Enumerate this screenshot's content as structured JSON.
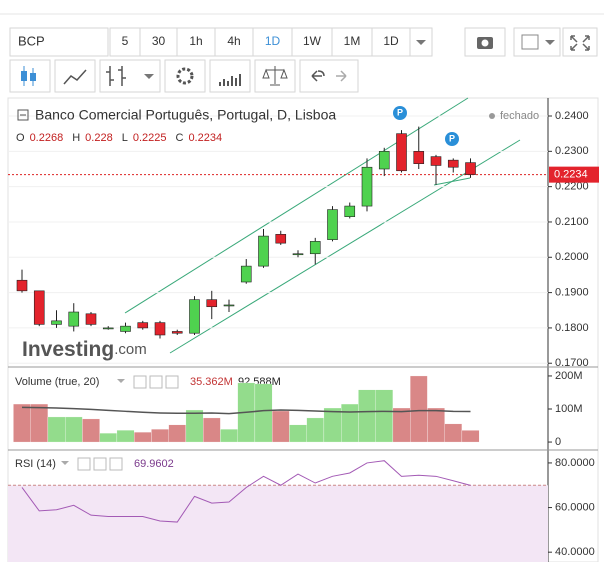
{
  "toolbar": {
    "symbol": "BCP",
    "intervals": [
      "5",
      "30",
      "1h",
      "4h",
      "1D",
      "1W",
      "1M",
      "1D"
    ]
  },
  "chart_data": [
    {
      "type": "candlestick",
      "title": "Banco Comercial Português, Portugal, D, Lisboa",
      "status": "fechado",
      "ohlc_legend": [
        {
          "key": "O",
          "value": 0.2268
        },
        {
          "key": "H",
          "value": 0.228
        },
        {
          "key": "L",
          "value": 0.2225
        },
        {
          "key": "C",
          "value": 0.2234
        }
      ],
      "watermark": [
        "Investing",
        ".com"
      ],
      "events": [
        "P",
        "P"
      ],
      "last_price": 0.2234,
      "open": [
        0.1935,
        0.1905,
        0.181,
        0.1805,
        0.184,
        0.18,
        0.179,
        0.1815,
        0.1815,
        0.179,
        0.1785,
        0.188,
        0.1865,
        0.193,
        0.1975,
        0.2065,
        0.201,
        0.201,
        0.205,
        0.2115,
        0.2145,
        0.225,
        0.235,
        0.23,
        0.2285,
        0.2275,
        0.2268
      ],
      "high": [
        0.1965,
        0.1905,
        0.185,
        0.187,
        0.1845,
        0.1805,
        0.1815,
        0.182,
        0.182,
        0.1795,
        0.189,
        0.1905,
        0.188,
        0.1995,
        0.208,
        0.2075,
        0.202,
        0.2055,
        0.2145,
        0.2155,
        0.228,
        0.231,
        0.236,
        0.237,
        0.229,
        0.228,
        0.228
      ],
      "low": [
        0.19,
        0.1805,
        0.18,
        0.179,
        0.1805,
        0.1795,
        0.1785,
        0.1795,
        0.177,
        0.178,
        0.178,
        0.1825,
        0.1845,
        0.1925,
        0.197,
        0.2035,
        0.2,
        0.198,
        0.2045,
        0.211,
        0.213,
        0.223,
        0.224,
        0.225,
        0.2205,
        0.224,
        0.2225
      ],
      "close": [
        0.1905,
        0.181,
        0.182,
        0.1845,
        0.181,
        0.18,
        0.1805,
        0.18,
        0.178,
        0.1785,
        0.188,
        0.186,
        0.1865,
        0.1975,
        0.206,
        0.204,
        0.201,
        0.2045,
        0.2135,
        0.2145,
        0.2255,
        0.23,
        0.2245,
        0.2265,
        0.226,
        0.2255,
        0.2234
      ],
      "up_color": "#4fd24f",
      "down_color": "#e3232c",
      "ylim": [
        0.1695,
        0.2451
      ],
      "yticks": [
        {
          "value": 0.24,
          "label": "0.2400"
        },
        {
          "value": 0.23,
          "label": "0.2300"
        },
        {
          "value": 0.22,
          "label": "0.2200"
        },
        {
          "value": 0.21,
          "label": "0.2100"
        },
        {
          "value": 0.2,
          "label": "0.2000"
        },
        {
          "value": 0.19,
          "label": "0.1900"
        },
        {
          "value": 0.18,
          "label": "0.1800"
        },
        {
          "value": 0.17,
          "label": "0.1700"
        }
      ]
    },
    {
      "type": "volume",
      "title": "Volume (true, 20)",
      "legend_values": [
        {
          "value": 35.362,
          "label": "35.362M"
        },
        {
          "value": 92.588,
          "label": "92.588M"
        }
      ],
      "values": [
        115,
        115,
        76,
        76,
        70,
        27,
        36,
        30,
        39,
        52,
        97,
        73,
        39,
        179,
        176,
        94,
        52,
        73,
        103,
        115,
        158,
        158,
        103,
        200,
        103,
        55,
        35.362
      ],
      "ma": [
        105,
        104,
        103,
        101,
        99,
        96,
        93,
        90,
        88,
        87,
        87,
        88,
        86,
        90,
        95,
        97,
        96,
        94,
        92,
        91,
        92,
        93,
        92,
        95,
        95,
        93,
        92.588
      ],
      "up_color": "#93dc8c",
      "down_color": "#d98787",
      "ma_color": "#555555",
      "ylim": [
        -18,
        218
      ],
      "yticks": [
        {
          "value": 200,
          "label": "200M"
        },
        {
          "value": 100,
          "label": "100M"
        },
        0
      ]
    },
    {
      "type": "line",
      "title": "RSI (14)",
      "legend_value": 69.9602,
      "values": [
        69,
        58.5,
        59,
        61,
        56.6,
        56,
        56,
        56,
        54,
        53.5,
        65,
        62,
        62.5,
        69,
        74,
        70,
        75,
        71,
        74,
        75.5,
        80,
        81,
        74,
        74.5,
        74,
        72,
        69.9602
      ],
      "color": "#a35ab5",
      "band": [
        30,
        70
      ],
      "band_color": "#f3e6f5",
      "ylim": [
        35.6,
        84.9
      ],
      "yticks": [
        {
          "value": 80,
          "label": "80.0000"
        },
        {
          "value": 60,
          "label": "60.0000"
        },
        {
          "value": 40,
          "label": "40.0000"
        }
      ]
    }
  ]
}
